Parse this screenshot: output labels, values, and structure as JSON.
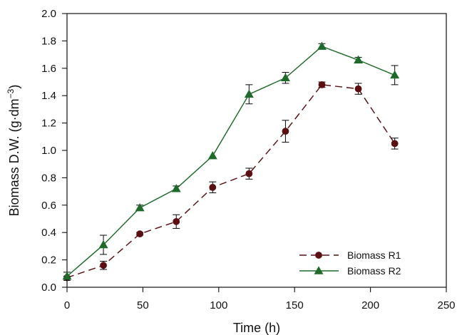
{
  "chart_data": {
    "type": "line",
    "xlabel": "Time (h)",
    "ylabel": {
      "main": "Biomass D.W. (g·dm",
      "superscript": "−3",
      "close": ")"
    },
    "xlim": [
      0,
      250
    ],
    "ylim": [
      0.0,
      2.0
    ],
    "x_ticks": [
      0,
      50,
      100,
      150,
      200,
      250
    ],
    "y_ticks": [
      0.0,
      0.2,
      0.4,
      0.6,
      0.8,
      1.0,
      1.2,
      1.4,
      1.6,
      1.8,
      2.0
    ],
    "x_tick_labels": [
      "0",
      "50",
      "100",
      "150",
      "200",
      "250"
    ],
    "y_tick_labels": [
      "0.0",
      "0.2",
      "0.4",
      "0.6",
      "0.8",
      "1.0",
      "1.2",
      "1.4",
      "1.6",
      "1.8",
      "2.0"
    ],
    "grid": false,
    "legend_position": "bottom-right",
    "series": [
      {
        "name": "Biomass R1",
        "color": "#5a0f12",
        "line_style": "dashed",
        "marker": "circle",
        "x": [
          0,
          24,
          48,
          72,
          96,
          120,
          144,
          168,
          192,
          216
        ],
        "y": [
          0.07,
          0.16,
          0.39,
          0.48,
          0.73,
          0.83,
          1.14,
          1.48,
          1.45,
          1.05
        ],
        "error": [
          0.01,
          0.03,
          0.01,
          0.05,
          0.04,
          0.04,
          0.08,
          0.02,
          0.04,
          0.04
        ]
      },
      {
        "name": "Biomass R2",
        "color": "#1f6a2b",
        "line_style": "solid",
        "marker": "triangle",
        "x": [
          0,
          24,
          48,
          72,
          96,
          120,
          144,
          168,
          192,
          216
        ],
        "y": [
          0.08,
          0.31,
          0.58,
          0.72,
          0.96,
          1.41,
          1.53,
          1.76,
          1.66,
          1.55
        ],
        "error": [
          0.03,
          0.07,
          0.02,
          0.02,
          0.0,
          0.07,
          0.04,
          0.02,
          0.02,
          0.07
        ]
      }
    ]
  }
}
